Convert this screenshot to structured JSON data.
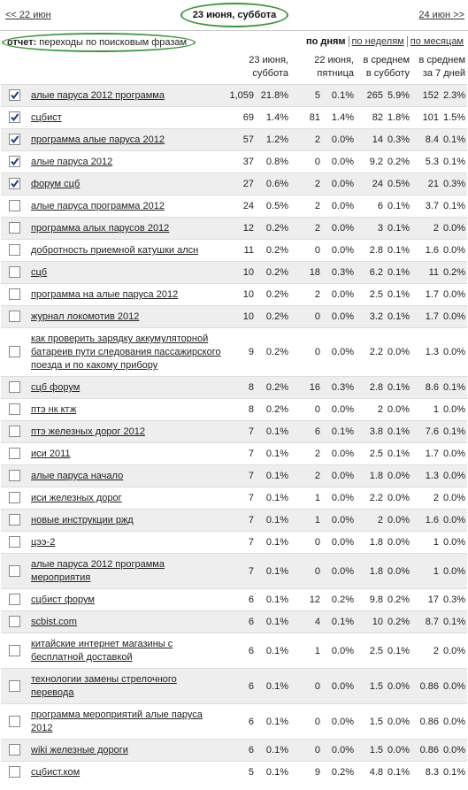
{
  "nav": {
    "prev": "<< 22 июн",
    "current": "23 июня, суббота",
    "next": "24 июн >>"
  },
  "report": {
    "label": "отчет:",
    "title": "переходы по поисковым фразам",
    "periods": [
      "по дням",
      "по неделям",
      "по месяцам"
    ],
    "active_period": 0
  },
  "table": {
    "headers": [
      [
        "23 июня,",
        "суббота"
      ],
      [
        "22 июня,",
        "пятница"
      ],
      [
        "в среднем",
        "в субботу"
      ],
      [
        "в среднем",
        "за 7 дней"
      ]
    ],
    "rows": [
      {
        "checked": true,
        "phrase": "алые паруса 2012 программа",
        "cells": [
          "1,059",
          "21.8%",
          "5",
          "0.1%",
          "265",
          "5.9%",
          "152",
          "2.3%"
        ]
      },
      {
        "checked": true,
        "phrase": "сцбист",
        "cells": [
          "69",
          "1.4%",
          "81",
          "1.4%",
          "82",
          "1.8%",
          "101",
          "1.5%"
        ]
      },
      {
        "checked": true,
        "phrase": "программа алые паруса 2012",
        "cells": [
          "57",
          "1.2%",
          "2",
          "0.0%",
          "14",
          "0.3%",
          "8.4",
          "0.1%"
        ]
      },
      {
        "checked": true,
        "phrase": "алые паруса 2012",
        "cells": [
          "37",
          "0.8%",
          "0",
          "0.0%",
          "9.2",
          "0.2%",
          "5.3",
          "0.1%"
        ]
      },
      {
        "checked": true,
        "phrase": "форум сцб",
        "cells": [
          "27",
          "0.6%",
          "2",
          "0.0%",
          "24",
          "0.5%",
          "21",
          "0.3%"
        ]
      },
      {
        "checked": false,
        "phrase": "алые паруса программа 2012",
        "cells": [
          "24",
          "0.5%",
          "2",
          "0.0%",
          "6",
          "0.1%",
          "3.7",
          "0.1%"
        ]
      },
      {
        "checked": false,
        "phrase": "программа алых парусов 2012",
        "cells": [
          "12",
          "0.2%",
          "2",
          "0.0%",
          "3",
          "0.1%",
          "2",
          "0.0%"
        ]
      },
      {
        "checked": false,
        "phrase": "добротность приемной катушки алсн",
        "cells": [
          "11",
          "0.2%",
          "0",
          "0.0%",
          "2.8",
          "0.1%",
          "1.6",
          "0.0%"
        ]
      },
      {
        "checked": false,
        "phrase": "сцб",
        "cells": [
          "10",
          "0.2%",
          "18",
          "0.3%",
          "6.2",
          "0.1%",
          "11",
          "0.2%"
        ]
      },
      {
        "checked": false,
        "phrase": "программа на алые паруса 2012",
        "cells": [
          "10",
          "0.2%",
          "2",
          "0.0%",
          "2.5",
          "0.1%",
          "1.7",
          "0.0%"
        ]
      },
      {
        "checked": false,
        "phrase": "журнал локомотив 2012",
        "cells": [
          "10",
          "0.2%",
          "0",
          "0.0%",
          "3.2",
          "0.1%",
          "1.7",
          "0.0%"
        ]
      },
      {
        "checked": false,
        "phrase": "как проверить зарядку аккумуляторной батареив пути следования пассажирского поезда и по какому прибору",
        "cells": [
          "9",
          "0.2%",
          "0",
          "0.0%",
          "2.2",
          "0.0%",
          "1.3",
          "0.0%"
        ]
      },
      {
        "checked": false,
        "phrase": "сцб форум",
        "cells": [
          "8",
          "0.2%",
          "16",
          "0.3%",
          "2.8",
          "0.1%",
          "8.6",
          "0.1%"
        ]
      },
      {
        "checked": false,
        "phrase": "птэ нк ктж",
        "cells": [
          "8",
          "0.2%",
          "0",
          "0.0%",
          "2",
          "0.0%",
          "1",
          "0.0%"
        ]
      },
      {
        "checked": false,
        "phrase": "птэ железных дорог 2012",
        "cells": [
          "7",
          "0.1%",
          "6",
          "0.1%",
          "3.8",
          "0.1%",
          "7.6",
          "0.1%"
        ]
      },
      {
        "checked": false,
        "phrase": "иси 2011",
        "cells": [
          "7",
          "0.1%",
          "2",
          "0.0%",
          "2.5",
          "0.1%",
          "1.7",
          "0.0%"
        ]
      },
      {
        "checked": false,
        "phrase": "алые паруса начало",
        "cells": [
          "7",
          "0.1%",
          "2",
          "0.0%",
          "1.8",
          "0.0%",
          "1.3",
          "0.0%"
        ]
      },
      {
        "checked": false,
        "phrase": "иси железных дорог",
        "cells": [
          "7",
          "0.1%",
          "1",
          "0.0%",
          "2.2",
          "0.0%",
          "2",
          "0.0%"
        ]
      },
      {
        "checked": false,
        "phrase": "новые инструкции ржд",
        "cells": [
          "7",
          "0.1%",
          "1",
          "0.0%",
          "2",
          "0.0%",
          "1.6",
          "0.0%"
        ]
      },
      {
        "checked": false,
        "phrase": "цээ-2",
        "cells": [
          "7",
          "0.1%",
          "0",
          "0.0%",
          "1.8",
          "0.0%",
          "1",
          "0.0%"
        ]
      },
      {
        "checked": false,
        "phrase": "алые паруса 2012 программа мероприятия",
        "cells": [
          "7",
          "0.1%",
          "0",
          "0.0%",
          "1.8",
          "0.0%",
          "1",
          "0.0%"
        ]
      },
      {
        "checked": false,
        "phrase": "сцбист форум",
        "cells": [
          "6",
          "0.1%",
          "12",
          "0.2%",
          "9.8",
          "0.2%",
          "17",
          "0.3%"
        ]
      },
      {
        "checked": false,
        "phrase": "scbist.com",
        "cells": [
          "6",
          "0.1%",
          "4",
          "0.1%",
          "10",
          "0.2%",
          "8.7",
          "0.1%"
        ]
      },
      {
        "checked": false,
        "phrase": "китайские интернет магазины с бесплатной доставкой",
        "cells": [
          "6",
          "0.1%",
          "1",
          "0.0%",
          "2.5",
          "0.1%",
          "2",
          "0.0%"
        ]
      },
      {
        "checked": false,
        "phrase": "технологии замены стрелочного перевода",
        "cells": [
          "6",
          "0.1%",
          "0",
          "0.0%",
          "1.5",
          "0.0%",
          "0.86",
          "0.0%"
        ]
      },
      {
        "checked": false,
        "phrase": "программа мероприятий алые паруса 2012",
        "cells": [
          "6",
          "0.1%",
          "0",
          "0.0%",
          "1.5",
          "0.0%",
          "0.86",
          "0.0%"
        ]
      },
      {
        "checked": false,
        "phrase": "wiki железные дороги",
        "cells": [
          "6",
          "0.1%",
          "0",
          "0.0%",
          "1.5",
          "0.0%",
          "0.86",
          "0.0%"
        ]
      },
      {
        "checked": false,
        "phrase": "сцбист.ком",
        "cells": [
          "5",
          "0.1%",
          "9",
          "0.2%",
          "4.8",
          "0.1%",
          "8.3",
          "0.1%"
        ]
      }
    ]
  }
}
